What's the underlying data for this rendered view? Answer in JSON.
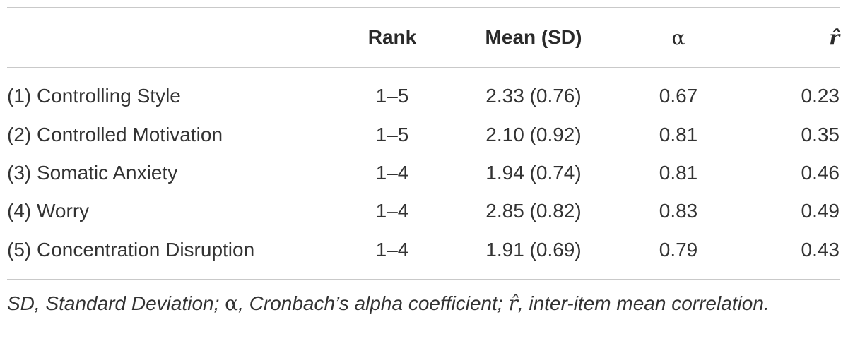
{
  "table": {
    "headers": {
      "label": "",
      "rank": "Rank",
      "mean_sd": "Mean (SD)",
      "alpha": "α",
      "r_hat": "r̂"
    },
    "rows": [
      {
        "label": "(1) Controlling Style",
        "rank": "1–5",
        "mean_sd": "2.33 (0.76)",
        "alpha": "0.67",
        "r_hat": "0.23"
      },
      {
        "label": "(2) Controlled Motivation",
        "rank": "1–5",
        "mean_sd": "2.10 (0.92)",
        "alpha": "0.81",
        "r_hat": "0.35"
      },
      {
        "label": "(3) Somatic Anxiety",
        "rank": "1–4",
        "mean_sd": "1.94 (0.74)",
        "alpha": "0.81",
        "r_hat": "0.46"
      },
      {
        "label": "(4) Worry",
        "rank": "1–4",
        "mean_sd": "2.85 (0.82)",
        "alpha": "0.83",
        "r_hat": "0.49"
      },
      {
        "label": "(5) Concentration Disruption",
        "rank": "1–4",
        "mean_sd": "1.91 (0.69)",
        "alpha": "0.79",
        "r_hat": "0.43"
      }
    ]
  },
  "footnote": {
    "part1": "SD, Standard Deviation; ",
    "alpha_symbol": "α",
    "part2": ", Cronbach’s alpha coefficient; ",
    "r_symbol": "r̂",
    "part3": ", inter-item mean correlation."
  }
}
